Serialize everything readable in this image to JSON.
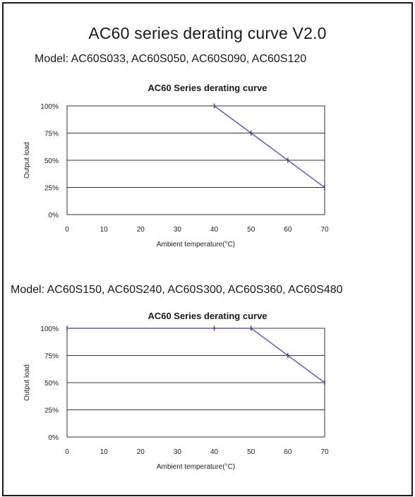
{
  "page": {
    "title": "AC60 series derating curve V2.0"
  },
  "chart_data": [
    {
      "type": "line",
      "model_line": "Model: AC60S033, AC60S050, AC60S090, AC60S120",
      "title": "AC60 Series derating curve",
      "xlabel": "Ambient temperature(°C)",
      "ylabel": "Output load",
      "x_ticks": [
        "0",
        "10",
        "20",
        "30",
        "40",
        "50",
        "60",
        "70"
      ],
      "y_ticks": [
        "0%",
        "25%",
        "50%",
        "75%",
        "100%"
      ],
      "xlim": [
        0,
        70
      ],
      "ylim": [
        0,
        100
      ],
      "grid": "horizontal",
      "line_color": "#5b5ba8",
      "series": [
        {
          "x": [
            40,
            50,
            60,
            70
          ],
          "y": [
            100,
            75,
            50,
            25
          ]
        }
      ]
    },
    {
      "type": "line",
      "model_line": "Model: AC60S150, AC60S240, AC60S300, AC60S360, AC60S480",
      "title": "AC60 Series derating curve",
      "xlabel": "Ambient temperature(°C)",
      "ylabel": "Output load",
      "x_ticks": [
        "0",
        "10",
        "20",
        "30",
        "40",
        "50",
        "60",
        "70"
      ],
      "y_ticks": [
        "0%",
        "25%",
        "50%",
        "75%",
        "100%"
      ],
      "xlim": [
        0,
        70
      ],
      "ylim": [
        0,
        100
      ],
      "grid": "horizontal",
      "line_color": "#5b5ba8",
      "series": [
        {
          "x": [
            0,
            40,
            50,
            60,
            70
          ],
          "y": [
            100,
            100,
            100,
            75,
            50
          ]
        }
      ]
    }
  ]
}
